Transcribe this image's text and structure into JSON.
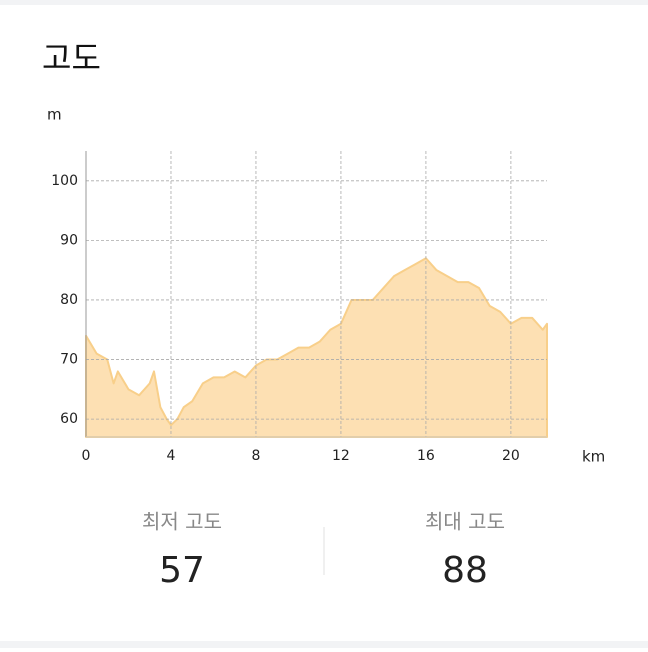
{
  "chart_data": {
    "type": "area",
    "title": "고도",
    "y_label": "m",
    "x_label": "km",
    "x": [
      0,
      0.5,
      1,
      1.3,
      1.5,
      2,
      2.5,
      3,
      3.2,
      3.5,
      3.8,
      4,
      4.3,
      4.6,
      5,
      5.5,
      6,
      6.5,
      7,
      7.5,
      8,
      8.5,
      9,
      9.5,
      10,
      10.5,
      11,
      11.5,
      12,
      12.5,
      13,
      13.5,
      14,
      14.5,
      15,
      15.5,
      16,
      16.5,
      17,
      17.5,
      18,
      18.5,
      19,
      19.5,
      20,
      20.5,
      21,
      21.5,
      21.7
    ],
    "values": [
      74,
      71,
      70,
      66,
      68,
      65,
      64,
      66,
      68,
      62,
      60,
      59,
      60,
      62,
      63,
      66,
      67,
      67,
      68,
      67,
      69,
      70,
      70,
      71,
      72,
      72,
      73,
      75,
      76,
      80,
      80,
      80,
      82,
      84,
      85,
      86,
      87,
      85,
      84,
      83,
      83,
      82,
      79,
      78,
      76,
      77,
      77,
      75,
      76
    ],
    "color": "#fde0b3",
    "line_color": "#f8cf8a",
    "xlim": [
      0,
      21.7
    ],
    "xticks": [
      0,
      4,
      8,
      12,
      16,
      20
    ],
    "ylim": [
      57,
      105
    ],
    "yticks": [
      60,
      70,
      80,
      90,
      100
    ],
    "grid": true
  },
  "stats": [
    {
      "label": "최저 고도",
      "value": 57
    },
    {
      "label": "최대 고도",
      "value": 88
    }
  ]
}
